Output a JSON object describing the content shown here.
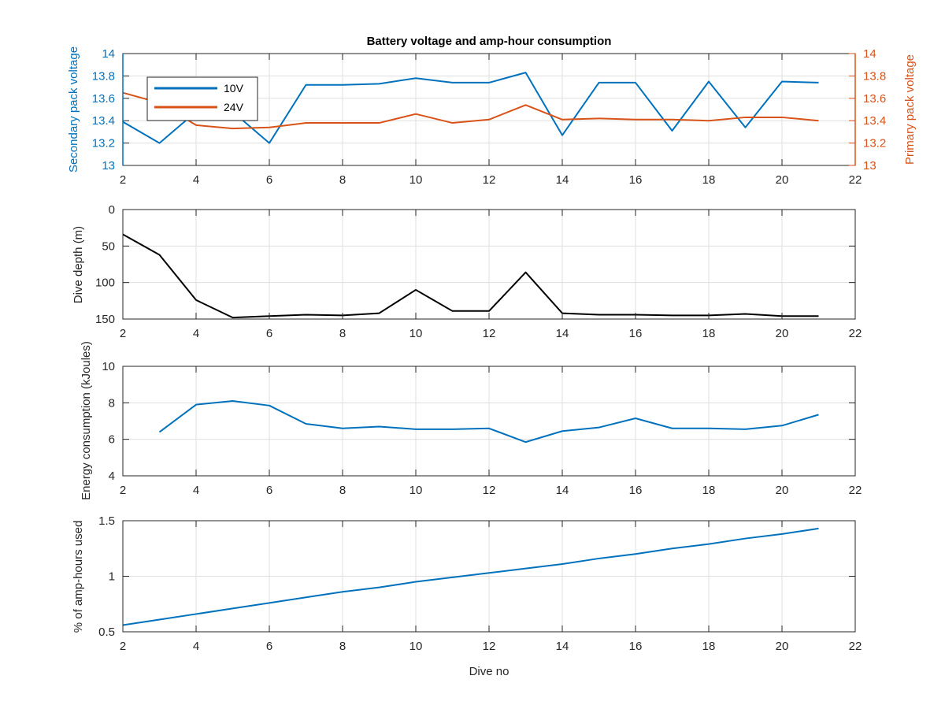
{
  "colors": {
    "v10": "#0072BD",
    "v24": "#D95319",
    "depth": "#000000",
    "axis": "#262626",
    "grid": "#dfdfdf"
  },
  "chart_data": [
    {
      "type": "line",
      "title": "Battery voltage and amp-hour consumption",
      "xlabel": "",
      "ylabel": "Secondary pack voltage",
      "ylabel_right": "Primary pack voltage",
      "xlim": [
        2,
        22
      ],
      "ylim": [
        13,
        14
      ],
      "ylim_right": [
        13,
        14
      ],
      "x_ticks": [
        2,
        4,
        6,
        8,
        10,
        12,
        14,
        16,
        18,
        20,
        22
      ],
      "y_ticks": [
        13,
        13.2,
        13.4,
        13.6,
        13.8,
        14
      ],
      "y_ticks_right": [
        13,
        13.2,
        13.4,
        13.6,
        13.8,
        14
      ],
      "grid": true,
      "legend_position": "top-left",
      "series": [
        {
          "name": "10V",
          "axis": "left",
          "color": "#0072BD",
          "x": [
            2,
            3,
            4,
            5,
            6,
            7,
            8,
            9,
            10,
            11,
            12,
            13,
            14,
            15,
            16,
            17,
            18,
            19,
            20,
            21
          ],
          "y": [
            13.39,
            13.2,
            13.48,
            13.48,
            13.2,
            13.72,
            13.72,
            13.73,
            13.78,
            13.74,
            13.74,
            13.83,
            13.27,
            13.74,
            13.74,
            13.31,
            13.75,
            13.34,
            13.75,
            13.74
          ]
        },
        {
          "name": "24V",
          "axis": "right",
          "color": "#D95319",
          "x": [
            2,
            3,
            4,
            5,
            6,
            7,
            8,
            9,
            10,
            11,
            12,
            13,
            14,
            15,
            16,
            17,
            18,
            19,
            20,
            21
          ],
          "y": [
            13.65,
            13.56,
            13.36,
            13.33,
            13.34,
            13.38,
            13.38,
            13.38,
            13.46,
            13.38,
            13.41,
            13.54,
            13.41,
            13.42,
            13.41,
            13.41,
            13.4,
            13.43,
            13.43,
            13.4
          ]
        }
      ]
    },
    {
      "type": "line",
      "xlabel": "",
      "ylabel": "Dive depth (m)",
      "xlim": [
        2,
        22
      ],
      "ylim": [
        0,
        150
      ],
      "y_reversed": true,
      "x_ticks": [
        2,
        4,
        6,
        8,
        10,
        12,
        14,
        16,
        18,
        20,
        22
      ],
      "y_ticks": [
        0,
        50,
        100,
        150
      ],
      "grid": true,
      "series": [
        {
          "color": "#000000",
          "x": [
            2,
            3,
            4,
            5,
            6,
            7,
            8,
            9,
            10,
            11,
            12,
            13,
            14,
            15,
            16,
            17,
            18,
            19,
            20,
            21
          ],
          "y": [
            34,
            62,
            124,
            148,
            146,
            144,
            145,
            142,
            110,
            139,
            139,
            86,
            142,
            144,
            144,
            145,
            145,
            143,
            146,
            146
          ]
        }
      ]
    },
    {
      "type": "line",
      "xlabel": "",
      "ylabel": "Energy consumption (kJoules)",
      "xlim": [
        2,
        22
      ],
      "ylim": [
        4,
        10
      ],
      "x_ticks": [
        2,
        4,
        6,
        8,
        10,
        12,
        14,
        16,
        18,
        20,
        22
      ],
      "y_ticks": [
        4,
        6,
        8,
        10
      ],
      "grid": true,
      "series": [
        {
          "color": "#0072BD",
          "x": [
            3,
            4,
            5,
            6,
            7,
            8,
            9,
            10,
            11,
            12,
            13,
            14,
            15,
            16,
            17,
            18,
            19,
            20,
            21
          ],
          "y": [
            6.4,
            7.9,
            8.1,
            7.85,
            6.85,
            6.6,
            6.7,
            6.55,
            6.55,
            6.6,
            5.85,
            6.45,
            6.65,
            7.15,
            6.6,
            6.6,
            6.55,
            6.75,
            7.35
          ]
        }
      ]
    },
    {
      "type": "line",
      "xlabel": "Dive no",
      "ylabel": "% of amp-hours used",
      "xlim": [
        2,
        22
      ],
      "ylim": [
        0.5,
        1.5
      ],
      "x_ticks": [
        2,
        4,
        6,
        8,
        10,
        12,
        14,
        16,
        18,
        20,
        22
      ],
      "y_ticks": [
        0.5,
        1,
        1.5
      ],
      "grid": true,
      "series": [
        {
          "color": "#0072BD",
          "x": [
            2,
            3,
            4,
            5,
            6,
            7,
            8,
            9,
            10,
            11,
            12,
            13,
            14,
            15,
            16,
            17,
            18,
            19,
            20,
            21
          ],
          "y": [
            0.56,
            0.61,
            0.66,
            0.71,
            0.76,
            0.81,
            0.86,
            0.9,
            0.95,
            0.99,
            1.03,
            1.07,
            1.11,
            1.16,
            1.2,
            1.25,
            1.29,
            1.34,
            1.38,
            1.43
          ]
        }
      ]
    }
  ]
}
